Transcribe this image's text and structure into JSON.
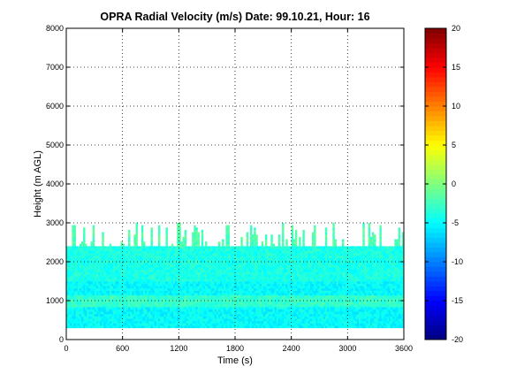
{
  "chart_data": {
    "type": "heatmap",
    "title": "OPRA Radial Velocity (m/s)  Date: 99.10.21, Hour: 16",
    "xlabel": "Time (s)",
    "ylabel": "Height (m AGL)",
    "xlim": [
      0,
      3600
    ],
    "ylim": [
      0,
      8000
    ],
    "xticks": [
      "0",
      "600",
      "1200",
      "1800",
      "2400",
      "3000",
      "3600"
    ],
    "yticks": [
      "0",
      "1000",
      "2000",
      "3000",
      "4000",
      "5000",
      "6000",
      "7000",
      "8000"
    ],
    "grid": "dotted",
    "colorbar": {
      "range": [
        -20,
        20
      ],
      "ticks": [
        "-20",
        "-15",
        "-10",
        "-5",
        "0",
        "5",
        "10",
        "15",
        "20"
      ],
      "colormap": "jet"
    },
    "data_coverage": {
      "height_min": 300,
      "height_solid_top": 2400,
      "height_patchy_top": 3000,
      "time_min": 0,
      "time_max": 3600
    },
    "value_bands": [
      {
        "height_from": 300,
        "height_to": 800,
        "velocity": -5
      },
      {
        "height_from": 800,
        "height_to": 1100,
        "velocity": -3
      },
      {
        "height_from": 1100,
        "height_to": 1500,
        "velocity": -5
      },
      {
        "height_from": 1500,
        "height_to": 2400,
        "velocity": -4
      },
      {
        "height_from": 2400,
        "height_to": 3000,
        "velocity": -2
      }
    ]
  }
}
